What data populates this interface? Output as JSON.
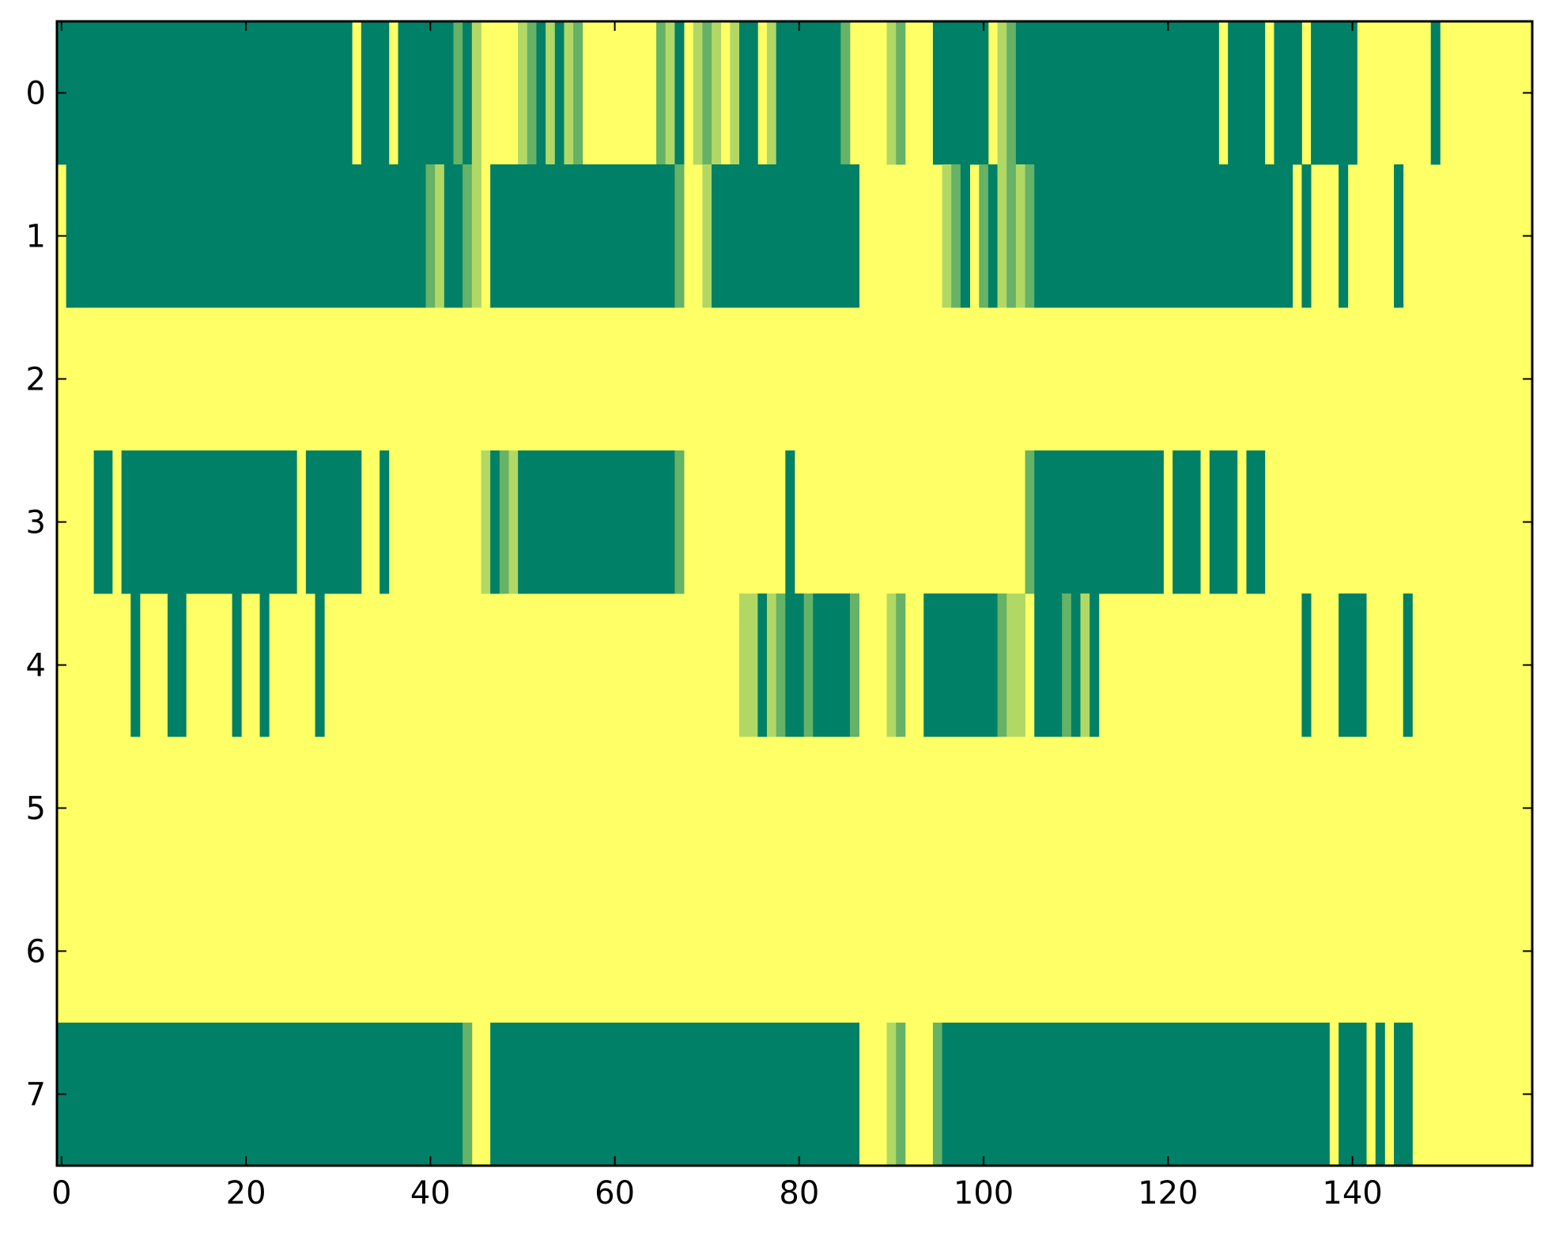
{
  "chart_data": {
    "type": "heatmap",
    "title": "",
    "xlabel": "",
    "ylabel": "",
    "xlim": [
      -0.5,
      159.5
    ],
    "ylim": [
      7.5,
      -0.5
    ],
    "n_cols": 160,
    "n_rows": 8,
    "colormap": "summer_r",
    "colors": {
      "level_0": "#ffff66",
      "level_1": "#b1d865",
      "level_2": "#66b266",
      "level_3": "#008066"
    },
    "x_ticks": [
      0,
      20,
      40,
      60,
      80,
      100,
      120,
      140
    ],
    "x_tick_labels": [
      "0",
      "20",
      "40",
      "60",
      "80",
      "100",
      "120",
      "140"
    ],
    "y_ticks": [
      0,
      1,
      2,
      3,
      4,
      5,
      6,
      7
    ],
    "y_tick_labels": [
      "0",
      "1",
      "2",
      "3",
      "4",
      "5",
      "6",
      "7"
    ],
    "grid": false,
    "legend": "none",
    "default_level": 0,
    "rows": [
      {
        "row": 0,
        "runs": [
          [
            0,
            31,
            3
          ],
          [
            33,
            35,
            3
          ],
          [
            37,
            42,
            3
          ],
          [
            43,
            43,
            2
          ],
          [
            44,
            44,
            3
          ],
          [
            45,
            45,
            1
          ],
          [
            50,
            50,
            1
          ],
          [
            51,
            51,
            2
          ],
          [
            52,
            52,
            3
          ],
          [
            53,
            53,
            1
          ],
          [
            54,
            54,
            3
          ],
          [
            55,
            55,
            1
          ],
          [
            56,
            56,
            2
          ],
          [
            65,
            65,
            2
          ],
          [
            66,
            66,
            1
          ],
          [
            67,
            67,
            3
          ],
          [
            69,
            69,
            1
          ],
          [
            70,
            70,
            2
          ],
          [
            71,
            71,
            1
          ],
          [
            73,
            73,
            1
          ],
          [
            74,
            75,
            3
          ],
          [
            77,
            77,
            1
          ],
          [
            78,
            84,
            3
          ],
          [
            85,
            85,
            2
          ],
          [
            90,
            90,
            1
          ],
          [
            91,
            91,
            2
          ],
          [
            95,
            100,
            3
          ],
          [
            102,
            102,
            1
          ],
          [
            103,
            103,
            2
          ],
          [
            104,
            125,
            3
          ],
          [
            127,
            130,
            3
          ],
          [
            132,
            134,
            3
          ],
          [
            136,
            140,
            3
          ],
          [
            149,
            149,
            3
          ]
        ]
      },
      {
        "row": 1,
        "runs": [
          [
            1,
            39,
            3
          ],
          [
            40,
            40,
            2
          ],
          [
            41,
            41,
            1
          ],
          [
            42,
            43,
            3
          ],
          [
            44,
            44,
            2
          ],
          [
            45,
            45,
            1
          ],
          [
            47,
            66,
            3
          ],
          [
            67,
            67,
            2
          ],
          [
            70,
            70,
            1
          ],
          [
            71,
            86,
            3
          ],
          [
            96,
            96,
            1
          ],
          [
            97,
            97,
            2
          ],
          [
            98,
            98,
            3
          ],
          [
            100,
            100,
            2
          ],
          [
            101,
            101,
            3
          ],
          [
            102,
            102,
            1
          ],
          [
            103,
            103,
            2
          ],
          [
            104,
            104,
            1
          ],
          [
            105,
            105,
            2
          ],
          [
            106,
            133,
            3
          ],
          [
            135,
            135,
            3
          ],
          [
            139,
            139,
            3
          ],
          [
            145,
            145,
            3
          ]
        ]
      },
      {
        "row": 2,
        "runs": []
      },
      {
        "row": 3,
        "runs": [
          [
            4,
            5,
            3
          ],
          [
            7,
            25,
            3
          ],
          [
            27,
            32,
            3
          ],
          [
            35,
            35,
            3
          ],
          [
            46,
            46,
            1
          ],
          [
            47,
            47,
            3
          ],
          [
            48,
            48,
            2
          ],
          [
            49,
            49,
            1
          ],
          [
            50,
            66,
            3
          ],
          [
            67,
            67,
            2
          ],
          [
            79,
            79,
            3
          ],
          [
            105,
            105,
            2
          ],
          [
            106,
            119,
            3
          ],
          [
            121,
            123,
            3
          ],
          [
            125,
            127,
            3
          ],
          [
            129,
            130,
            3
          ]
        ]
      },
      {
        "row": 4,
        "runs": [
          [
            8,
            8,
            3
          ],
          [
            12,
            13,
            3
          ],
          [
            19,
            19,
            3
          ],
          [
            22,
            22,
            3
          ],
          [
            28,
            28,
            3
          ],
          [
            74,
            75,
            1
          ],
          [
            76,
            76,
            3
          ],
          [
            77,
            77,
            1
          ],
          [
            78,
            78,
            2
          ],
          [
            79,
            80,
            3
          ],
          [
            81,
            81,
            2
          ],
          [
            82,
            82,
            3
          ],
          [
            83,
            85,
            3
          ],
          [
            86,
            86,
            2
          ],
          [
            90,
            90,
            1
          ],
          [
            91,
            91,
            2
          ],
          [
            94,
            94,
            3
          ],
          [
            95,
            101,
            3
          ],
          [
            102,
            102,
            2
          ],
          [
            103,
            104,
            1
          ],
          [
            106,
            108,
            3
          ],
          [
            109,
            109,
            2
          ],
          [
            110,
            110,
            3
          ],
          [
            111,
            111,
            1
          ],
          [
            112,
            112,
            3
          ],
          [
            135,
            135,
            3
          ],
          [
            139,
            141,
            3
          ],
          [
            146,
            146,
            3
          ]
        ]
      },
      {
        "row": 5,
        "runs": []
      },
      {
        "row": 6,
        "runs": []
      },
      {
        "row": 7,
        "runs": [
          [
            0,
            43,
            3
          ],
          [
            44,
            44,
            2
          ],
          [
            47,
            86,
            3
          ],
          [
            90,
            90,
            1
          ],
          [
            91,
            91,
            2
          ],
          [
            95,
            95,
            2
          ],
          [
            96,
            137,
            3
          ],
          [
            139,
            141,
            3
          ],
          [
            143,
            143,
            3
          ],
          [
            145,
            146,
            3
          ]
        ]
      }
    ]
  }
}
